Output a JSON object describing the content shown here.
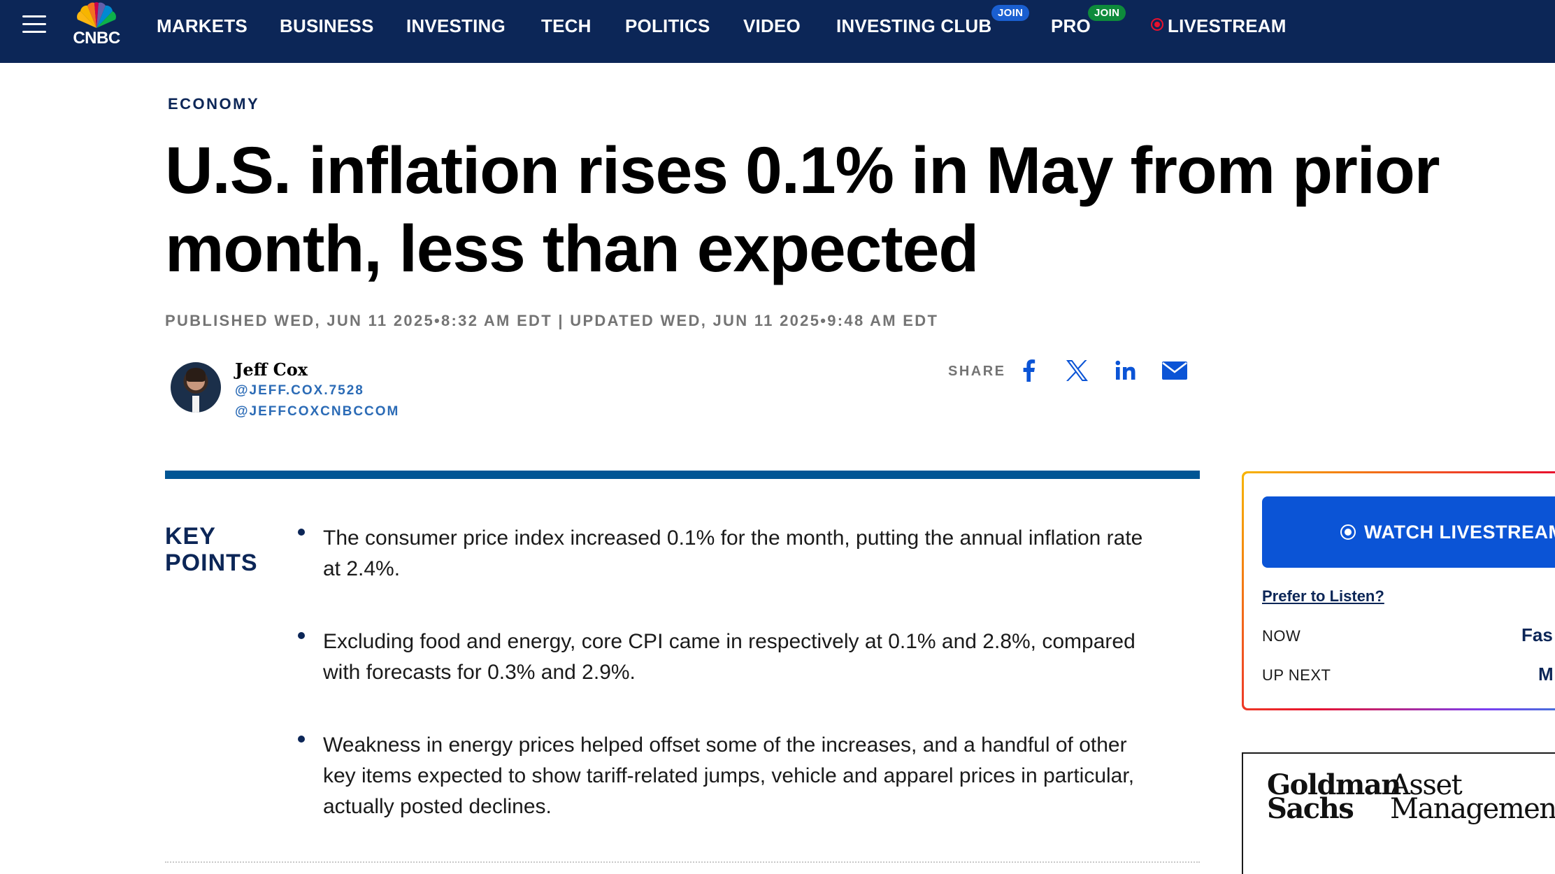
{
  "nav": {
    "logo_text": "CNBC",
    "items": [
      {
        "label": "MARKETS"
      },
      {
        "label": "BUSINESS"
      },
      {
        "label": "INVESTING"
      },
      {
        "label": "TECH"
      },
      {
        "label": "POLITICS"
      },
      {
        "label": "VIDEO"
      },
      {
        "label": "INVESTING CLUB",
        "badge": "JOIN"
      },
      {
        "label": "PRO",
        "badge": "JOIN"
      },
      {
        "label": "LIVESTREAM"
      }
    ],
    "badge_colors": {
      "investing_club": "#1a5fd1",
      "pro": "#0e8a3b"
    },
    "live_color": "#e8112d"
  },
  "article": {
    "section": "ECONOMY",
    "headline": "U.S. inflation rises 0.1% in May from prior month, less than expected",
    "timestamp": "PUBLISHED WED, JUN 11 2025•8:32 AM EDT | UPDATED WED, JUN 11 2025•9:48 AM EDT",
    "author": {
      "name": "Jeff Cox",
      "handles": [
        "@JEFF.COX.7528",
        "@JEFFCOXCNBCCOM"
      ]
    },
    "share": {
      "label": "SHARE",
      "icons": [
        "facebook-icon",
        "x-icon",
        "linkedin-icon",
        "email-icon"
      ]
    },
    "key_points": {
      "title_line1": "KEY",
      "title_line2": "POINTS",
      "items": [
        "The consumer price index increased 0.1% for the month, putting the annual inflation rate at 2.4%.",
        "Excluding food and energy, core CPI came in respectively at 0.1% and 2.8%, compared with forecasts for 0.3% and 2.9%.",
        "Weakness in energy prices helped offset some of the increases, and a handful of other key items expected to show tariff-related jumps, vehicle and apparel prices in particular, actually posted declines."
      ]
    }
  },
  "sidebar": {
    "watch_button": "WATCH LIVESTREAM",
    "prefer_link": "Prefer to Listen?",
    "now_label": "NOW",
    "now_value": "Fas",
    "up_next_label": "UP NEXT",
    "up_next_value": "M"
  },
  "ad": {
    "brand_line1": "Goldman",
    "brand_line2": "Sachs",
    "sub_line1": "Asset",
    "sub_line2": "Management"
  },
  "colors": {
    "nav_bg": "#0c2657",
    "accent_blue": "#005594",
    "link_blue": "#2b6bb6",
    "watch_button": "#0b54d6"
  }
}
